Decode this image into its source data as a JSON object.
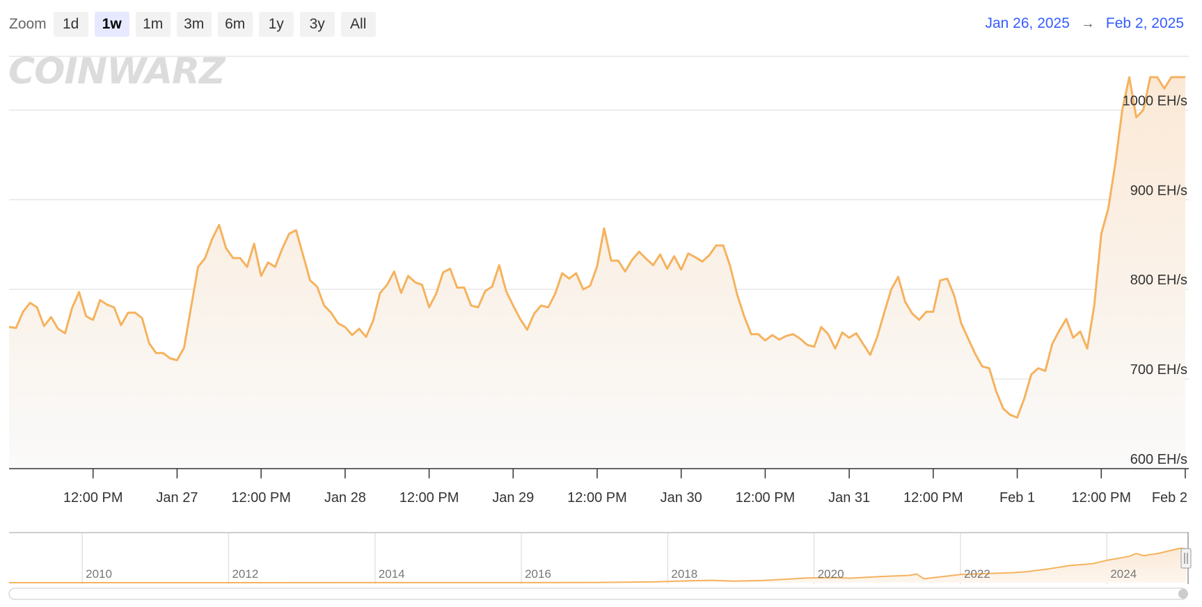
{
  "toolbar": {
    "zoom_label": "Zoom",
    "buttons": [
      {
        "label": "1d",
        "active": false
      },
      {
        "label": "1w",
        "active": true
      },
      {
        "label": "1m",
        "active": false
      },
      {
        "label": "3m",
        "active": false
      },
      {
        "label": "6m",
        "active": false
      },
      {
        "label": "1y",
        "active": false
      },
      {
        "label": "3y",
        "active": false
      },
      {
        "label": "All",
        "active": false
      }
    ]
  },
  "range": {
    "from": "Jan 26, 2025",
    "arrow": "→",
    "to": "Feb 2, 2025"
  },
  "logo_text": "COINWARZ",
  "colors": {
    "line": "#f5b25e",
    "fill_top": "#fbe9d6",
    "fill_bottom": "#fafafa",
    "grid": "#e6e6e6",
    "accent": "#335cff"
  },
  "chart_data": {
    "type": "area",
    "unit": "EH/s",
    "ylim": [
      600,
      1060
    ],
    "yticks": [
      {
        "value": 600,
        "label": "600 EH/s"
      },
      {
        "value": 700,
        "label": "700 EH/s"
      },
      {
        "value": 800,
        "label": "800 EH/s"
      },
      {
        "value": 900,
        "label": "900 EH/s"
      },
      {
        "value": 1000,
        "label": "1000 EH/s"
      }
    ],
    "xlim": [
      0,
      168.5
    ],
    "xticks": [
      {
        "hours": 12,
        "label": "12:00 PM"
      },
      {
        "hours": 24,
        "label": "Jan 27"
      },
      {
        "hours": 36,
        "label": "12:00 PM"
      },
      {
        "hours": 48,
        "label": "Jan 28"
      },
      {
        "hours": 60,
        "label": "12:00 PM"
      },
      {
        "hours": 72,
        "label": "Jan 29"
      },
      {
        "hours": 84,
        "label": "12:00 PM"
      },
      {
        "hours": 96,
        "label": "Jan 30"
      },
      {
        "hours": 108,
        "label": "12:00 PM"
      },
      {
        "hours": 120,
        "label": "Jan 31"
      },
      {
        "hours": 132,
        "label": "12:00 PM"
      },
      {
        "hours": 144,
        "label": "Feb 1"
      },
      {
        "hours": 156,
        "label": "12:00 PM"
      },
      {
        "hours": 168,
        "label": "Feb 2"
      }
    ],
    "grid": true,
    "series": [
      {
        "points": [
          [
            0,
            758
          ],
          [
            1,
            757
          ],
          [
            2,
            775
          ],
          [
            3,
            785
          ],
          [
            4,
            780
          ],
          [
            5,
            759
          ],
          [
            6,
            769
          ],
          [
            7,
            756
          ],
          [
            8,
            751
          ],
          [
            9,
            779
          ],
          [
            10,
            797
          ],
          [
            11,
            770
          ],
          [
            12,
            766
          ],
          [
            13,
            788
          ],
          [
            14,
            783
          ],
          [
            15,
            780
          ],
          [
            16,
            760
          ],
          [
            17,
            774
          ],
          [
            18,
            774
          ],
          [
            19,
            768
          ],
          [
            20,
            740
          ],
          [
            21,
            729
          ],
          [
            22,
            729
          ],
          [
            23,
            723
          ],
          [
            24,
            721
          ],
          [
            25,
            735
          ],
          [
            26,
            780
          ],
          [
            27,
            825
          ],
          [
            28,
            835
          ],
          [
            29,
            856
          ],
          [
            30,
            872
          ],
          [
            31,
            846
          ],
          [
            32,
            835
          ],
          [
            33,
            835
          ],
          [
            34,
            825
          ],
          [
            35,
            851
          ],
          [
            36,
            815
          ],
          [
            37,
            830
          ],
          [
            38,
            825
          ],
          [
            39,
            845
          ],
          [
            40,
            862
          ],
          [
            41,
            866
          ],
          [
            42,
            838
          ],
          [
            43,
            810
          ],
          [
            44,
            803
          ],
          [
            45,
            782
          ],
          [
            46,
            774
          ],
          [
            47,
            762
          ],
          [
            48,
            758
          ],
          [
            49,
            749
          ],
          [
            50,
            756
          ],
          [
            51,
            747
          ],
          [
            52,
            765
          ],
          [
            53,
            796
          ],
          [
            54,
            805
          ],
          [
            55,
            820
          ],
          [
            56,
            796
          ],
          [
            57,
            815
          ],
          [
            58,
            808
          ],
          [
            59,
            805
          ],
          [
            60,
            780
          ],
          [
            61,
            795
          ],
          [
            62,
            819
          ],
          [
            63,
            823
          ],
          [
            64,
            802
          ],
          [
            65,
            802
          ],
          [
            66,
            782
          ],
          [
            67,
            780
          ],
          [
            68,
            798
          ],
          [
            69,
            803
          ],
          [
            70,
            827
          ],
          [
            71,
            798
          ],
          [
            72,
            782
          ],
          [
            73,
            767
          ],
          [
            74,
            755
          ],
          [
            75,
            773
          ],
          [
            76,
            782
          ],
          [
            77,
            780
          ],
          [
            78,
            795
          ],
          [
            79,
            818
          ],
          [
            80,
            812
          ],
          [
            81,
            818
          ],
          [
            82,
            800
          ],
          [
            83,
            804
          ],
          [
            84,
            826
          ],
          [
            85,
            868
          ],
          [
            86,
            832
          ],
          [
            87,
            832
          ],
          [
            88,
            820
          ],
          [
            89,
            833
          ],
          [
            90,
            842
          ],
          [
            91,
            834
          ],
          [
            92,
            827
          ],
          [
            93,
            839
          ],
          [
            94,
            823
          ],
          [
            95,
            837
          ],
          [
            96,
            822
          ],
          [
            97,
            840
          ],
          [
            98,
            836
          ],
          [
            99,
            831
          ],
          [
            100,
            838
          ],
          [
            101,
            849
          ],
          [
            102,
            849
          ],
          [
            103,
            826
          ],
          [
            104,
            794
          ],
          [
            105,
            770
          ],
          [
            106,
            750
          ],
          [
            107,
            750
          ],
          [
            108,
            743
          ],
          [
            109,
            749
          ],
          [
            110,
            744
          ],
          [
            111,
            748
          ],
          [
            112,
            750
          ],
          [
            113,
            745
          ],
          [
            114,
            738
          ],
          [
            115,
            736
          ],
          [
            116,
            758
          ],
          [
            117,
            750
          ],
          [
            118,
            734
          ],
          [
            119,
            752
          ],
          [
            120,
            746
          ],
          [
            121,
            751
          ],
          [
            122,
            739
          ],
          [
            123,
            727
          ],
          [
            124,
            747
          ],
          [
            125,
            774
          ],
          [
            126,
            800
          ],
          [
            127,
            814
          ],
          [
            128,
            786
          ],
          [
            129,
            773
          ],
          [
            130,
            766
          ],
          [
            131,
            775
          ],
          [
            132,
            775
          ],
          [
            133,
            810
          ],
          [
            134,
            812
          ],
          [
            135,
            793
          ],
          [
            136,
            762
          ],
          [
            137,
            745
          ],
          [
            138,
            728
          ],
          [
            139,
            714
          ],
          [
            140,
            712
          ],
          [
            141,
            686
          ],
          [
            142,
            667
          ],
          [
            143,
            660
          ],
          [
            144,
            657
          ],
          [
            145,
            678
          ],
          [
            146,
            705
          ],
          [
            147,
            712
          ],
          [
            148,
            709
          ],
          [
            149,
            739
          ],
          [
            150,
            754
          ],
          [
            151,
            767
          ],
          [
            152,
            746
          ],
          [
            153,
            753
          ],
          [
            154,
            734
          ],
          [
            155,
            782
          ],
          [
            156,
            862
          ],
          [
            157,
            890
          ],
          [
            158,
            940
          ],
          [
            159,
            1000
          ],
          [
            160,
            1043
          ],
          [
            161,
            992
          ],
          [
            162,
            1000
          ],
          [
            163,
            1057
          ],
          [
            164,
            1038
          ],
          [
            165,
            1024
          ],
          [
            166,
            1042
          ],
          [
            167,
            1074
          ],
          [
            168,
            1060
          ]
        ]
      }
    ]
  },
  "navigator": {
    "year_labels": [
      "2010",
      "2012",
      "2014",
      "2016",
      "2018",
      "2020",
      "2022",
      "2024"
    ],
    "year_positions": [
      2010,
      2012,
      2014,
      2016,
      2018,
      2020,
      2022,
      2024
    ],
    "xlim": [
      2009.0,
      2025.1
    ],
    "ylim": [
      0,
      1100
    ],
    "points": [
      [
        2009.0,
        0
      ],
      [
        2016.0,
        1
      ],
      [
        2017.0,
        5
      ],
      [
        2017.8,
        18
      ],
      [
        2018.3,
        45
      ],
      [
        2018.6,
        55
      ],
      [
        2018.9,
        38
      ],
      [
        2019.3,
        50
      ],
      [
        2019.6,
        80
      ],
      [
        2019.9,
        110
      ],
      [
        2020.3,
        115
      ],
      [
        2020.5,
        105
      ],
      [
        2020.9,
        140
      ],
      [
        2021.3,
        170
      ],
      [
        2021.4,
        200
      ],
      [
        2021.5,
        90
      ],
      [
        2021.8,
        150
      ],
      [
        2022.0,
        190
      ],
      [
        2022.4,
        215
      ],
      [
        2022.7,
        230
      ],
      [
        2022.9,
        255
      ],
      [
        2023.2,
        320
      ],
      [
        2023.5,
        400
      ],
      [
        2023.8,
        440
      ],
      [
        2024.0,
        520
      ],
      [
        2024.3,
        610
      ],
      [
        2024.4,
        680
      ],
      [
        2024.5,
        630
      ],
      [
        2024.7,
        680
      ],
      [
        2024.9,
        760
      ],
      [
        2025.0,
        800
      ],
      [
        2025.08,
        790
      ]
    ]
  }
}
